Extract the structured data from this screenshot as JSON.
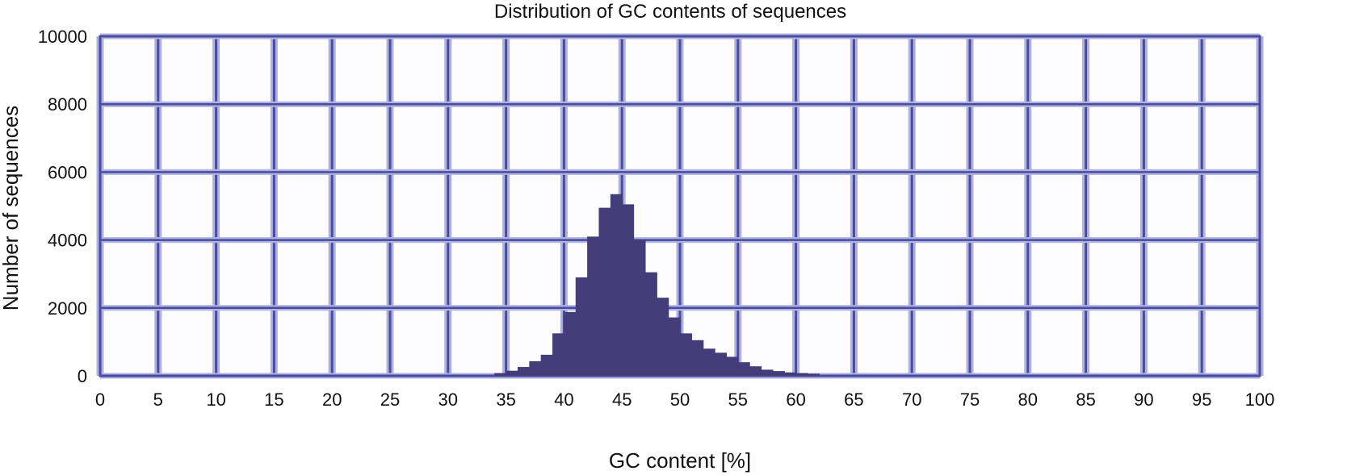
{
  "chart_data": {
    "type": "bar",
    "title": "Distribution of GC contents of sequences",
    "xlabel": "GC content [%]",
    "ylabel": "Number of sequences",
    "xlim": [
      0,
      100
    ],
    "ylim": [
      0,
      10000
    ],
    "xticks": [
      "0",
      "5",
      "10",
      "15",
      "20",
      "25",
      "30",
      "35",
      "40",
      "45",
      "50",
      "55",
      "60",
      "65",
      "70",
      "75",
      "80",
      "85",
      "90",
      "95",
      "100"
    ],
    "yticks": [
      "0",
      "2000",
      "4000",
      "6000",
      "8000",
      "10000"
    ],
    "grid": true,
    "bin_width": 1,
    "bins": [
      {
        "x": 34,
        "y": 80
      },
      {
        "x": 35,
        "y": 150
      },
      {
        "x": 36,
        "y": 260
      },
      {
        "x": 37,
        "y": 430
      },
      {
        "x": 38,
        "y": 620
      },
      {
        "x": 39,
        "y": 1250
      },
      {
        "x": 40,
        "y": 1880
      },
      {
        "x": 41,
        "y": 2900
      },
      {
        "x": 42,
        "y": 4100
      },
      {
        "x": 43,
        "y": 4950
      },
      {
        "x": 44,
        "y": 5350
      },
      {
        "x": 45,
        "y": 5050
      },
      {
        "x": 46,
        "y": 4000
      },
      {
        "x": 47,
        "y": 3050
      },
      {
        "x": 48,
        "y": 2300
      },
      {
        "x": 49,
        "y": 1720
      },
      {
        "x": 50,
        "y": 1250
      },
      {
        "x": 51,
        "y": 1050
      },
      {
        "x": 52,
        "y": 800
      },
      {
        "x": 53,
        "y": 680
      },
      {
        "x": 54,
        "y": 560
      },
      {
        "x": 55,
        "y": 400
      },
      {
        "x": 56,
        "y": 280
      },
      {
        "x": 57,
        "y": 180
      },
      {
        "x": 58,
        "y": 140
      },
      {
        "x": 59,
        "y": 100
      },
      {
        "x": 60,
        "y": 80
      },
      {
        "x": 61,
        "y": 60
      }
    ],
    "colors": {
      "bar": "#453C7A",
      "grid": "#4A4BA0",
      "grid_light": "#AEB2DE"
    }
  }
}
